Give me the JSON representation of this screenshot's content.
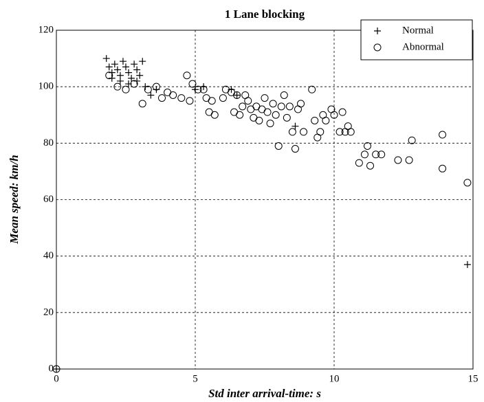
{
  "chart_data": {
    "type": "scatter",
    "title": "1 Lane blocking",
    "xlabel": "Std inter arrival-time: s",
    "ylabel": "Mean speed: km/h",
    "xlim": [
      0,
      15
    ],
    "ylim": [
      0,
      120
    ],
    "xticks": [
      0,
      5,
      10,
      15
    ],
    "yticks": [
      0,
      20,
      40,
      60,
      80,
      100,
      120
    ],
    "grid": true,
    "legend": "upper right",
    "series": [
      {
        "name": "Normal",
        "color": "#000000",
        "marker": "plus",
        "x": [
          1.8,
          1.9,
          2.0,
          2.1,
          2.2,
          2.3,
          2.4,
          2.5,
          2.6,
          2.7,
          2.8,
          2.9,
          3.0,
          3.1,
          2.0,
          2.3,
          2.6,
          2.9,
          3.2,
          3.4,
          3.6,
          5.0,
          5.3,
          6.3,
          6.5,
          8.6,
          14.8,
          0
        ],
        "values": [
          110,
          107,
          105,
          108,
          106,
          104,
          109,
          107,
          105,
          103,
          108,
          106,
          104,
          109,
          103,
          102,
          101,
          102,
          100,
          97,
          99,
          99,
          100,
          99,
          97,
          86,
          37,
          0
        ]
      },
      {
        "name": "Abnormal",
        "color": "#000000",
        "marker": "circle",
        "x": [
          1.9,
          2.2,
          2.5,
          2.8,
          3.1,
          3.3,
          3.6,
          3.8,
          4.0,
          4.2,
          4.5,
          4.7,
          4.8,
          4.9,
          5.1,
          5.3,
          5.4,
          5.5,
          5.6,
          5.7,
          6.0,
          6.1,
          6.3,
          6.4,
          6.5,
          6.6,
          6.7,
          6.8,
          6.9,
          7.0,
          7.1,
          7.2,
          7.3,
          7.4,
          7.5,
          7.6,
          7.7,
          7.8,
          7.9,
          8.0,
          8.1,
          8.2,
          8.3,
          8.4,
          8.5,
          8.6,
          8.7,
          8.8,
          8.9,
          9.2,
          9.3,
          9.4,
          9.5,
          9.6,
          9.7,
          9.9,
          10.0,
          10.2,
          10.3,
          10.4,
          10.5,
          10.6,
          10.9,
          11.1,
          11.2,
          11.3,
          11.5,
          11.7,
          12.3,
          12.7,
          12.8,
          13.9,
          13.9,
          14.8,
          0
        ],
        "values": [
          104,
          100,
          99,
          101,
          94,
          99,
          100,
          96,
          98,
          97,
          96,
          104,
          95,
          101,
          99,
          99,
          96,
          91,
          95,
          90,
          96,
          99,
          98,
          91,
          97,
          90,
          93,
          97,
          95,
          92,
          89,
          93,
          88,
          92,
          96,
          91,
          87,
          94,
          90,
          79,
          93,
          97,
          89,
          93,
          84,
          78,
          92,
          94,
          84,
          99,
          88,
          82,
          84,
          90,
          88,
          92,
          90,
          84,
          91,
          84,
          86,
          84,
          73,
          76,
          79,
          72,
          76,
          76,
          74,
          74,
          81,
          83,
          71,
          66,
          0
        ]
      }
    ]
  }
}
